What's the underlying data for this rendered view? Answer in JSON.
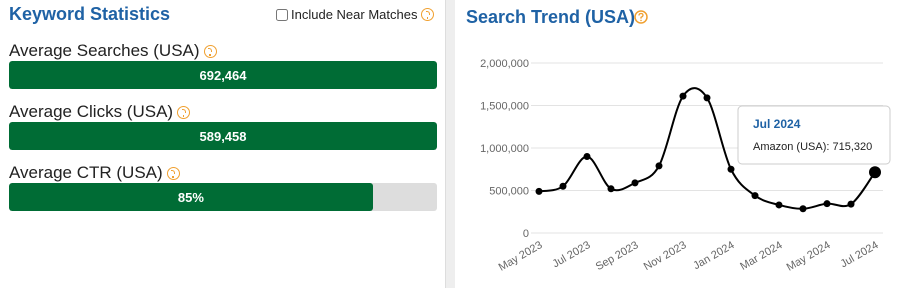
{
  "keyword_statistics": {
    "title": "Keyword Statistics",
    "checkbox_label": "Include Near Matches",
    "checked": false,
    "metrics": [
      {
        "label": "Average Searches (USA)",
        "value": 692464,
        "value_label": "692,464"
      },
      {
        "label": "Average Clicks (USA)",
        "value": 589458,
        "value_label": "589,458"
      },
      {
        "label": "Average CTR (USA)",
        "value": 85,
        "value_label": "85%"
      }
    ]
  },
  "chart_data": {
    "type": "line",
    "title": "Search Trend (USA)",
    "categories": [
      "May 2023",
      null,
      "Jul 2023",
      null,
      "Sep 2023",
      null,
      "Nov 2023",
      null,
      "Jan 2024",
      null,
      "Mar 2024",
      null,
      "May 2024",
      null,
      "Jul 2024"
    ],
    "series": [
      {
        "color": "#000000",
        "values": [
          490000,
          550000,
          900000,
          520000,
          590000,
          790000,
          1610000,
          1590000,
          750000,
          440000,
          330000,
          285000,
          345000,
          340000,
          715320
        ],
        "value_labels": [
          null,
          null,
          null,
          null,
          null,
          null,
          null,
          null,
          null,
          null,
          null,
          null,
          null,
          null,
          "Amazon (USA): 715,320"
        ]
      }
    ],
    "highlight_index": 14,
    "ylim": [
      0,
      2000000
    ],
    "yticks": [
      0,
      {
        "value": 500000,
        "label": "500,000"
      },
      {
        "value": 1000000,
        "label": "1,000,000"
      },
      {
        "value": 1500000,
        "label": "1,500,000"
      },
      {
        "value": 2000000,
        "label": "2,000,000"
      }
    ],
    "grid": true
  }
}
